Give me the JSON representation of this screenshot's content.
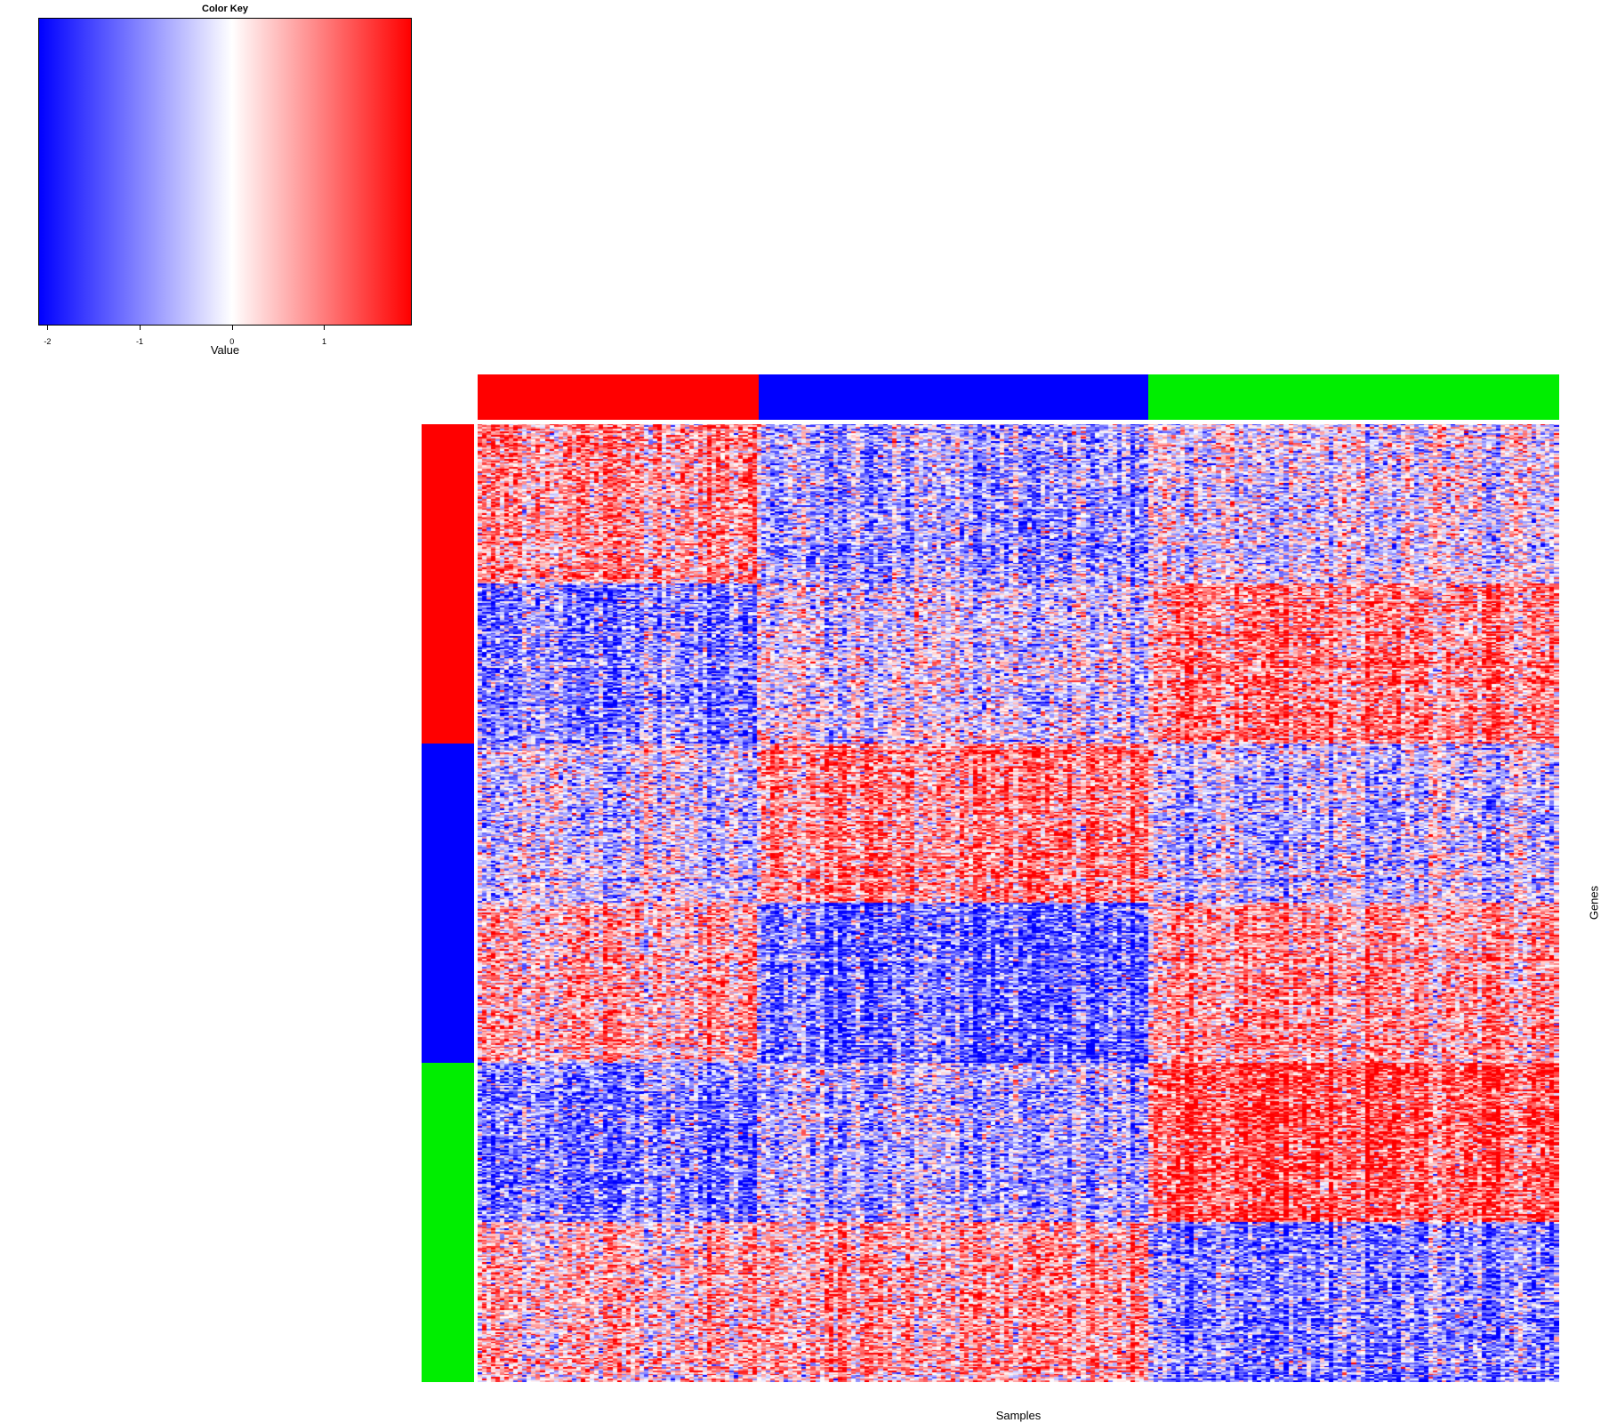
{
  "chart_data": {
    "type": "heatmap",
    "title": "",
    "xlabel": "Samples",
    "ylabel": "Genes",
    "color_key": {
      "title": "Color Key",
      "axis_label": "Value",
      "range": [
        -2.1,
        1.95
      ],
      "ticks": [
        -2,
        -1,
        0,
        1
      ],
      "tick_labels": [
        "-2",
        "-1",
        "0",
        "1"
      ],
      "low_color": "#0000ff",
      "mid_color": "#ffffff",
      "high_color": "#ff0000"
    },
    "sample_groups": [
      {
        "color": "#ff0000",
        "fraction": 0.26
      },
      {
        "color": "#0000ff",
        "fraction": 0.36
      },
      {
        "color": "#00ee00",
        "fraction": 0.38
      }
    ],
    "gene_groups": [
      {
        "color": "#ff0000",
        "fraction": 0.333
      },
      {
        "color": "#0000ff",
        "fraction": 0.334
      },
      {
        "color": "#00ee00",
        "fraction": 0.333
      }
    ],
    "gene_blocks": [
      {
        "fraction": 0.1667,
        "mean_by_sample_group": [
          0.8,
          -0.7,
          -0.1
        ]
      },
      {
        "fraction": 0.1667,
        "mean_by_sample_group": [
          -1.0,
          -0.2,
          0.9
        ]
      },
      {
        "fraction": 0.1667,
        "mean_by_sample_group": [
          -0.3,
          0.9,
          -0.4
        ]
      },
      {
        "fraction": 0.1667,
        "mean_by_sample_group": [
          0.6,
          -1.2,
          0.7
        ]
      },
      {
        "fraction": 0.1666,
        "mean_by_sample_group": [
          -1.1,
          -0.6,
          1.3
        ]
      },
      {
        "fraction": 0.1666,
        "mean_by_sample_group": [
          0.4,
          0.6,
          -1.0
        ]
      }
    ],
    "n_samples": 240,
    "n_genes": 600,
    "grid": false,
    "legend_position": "top-left"
  }
}
